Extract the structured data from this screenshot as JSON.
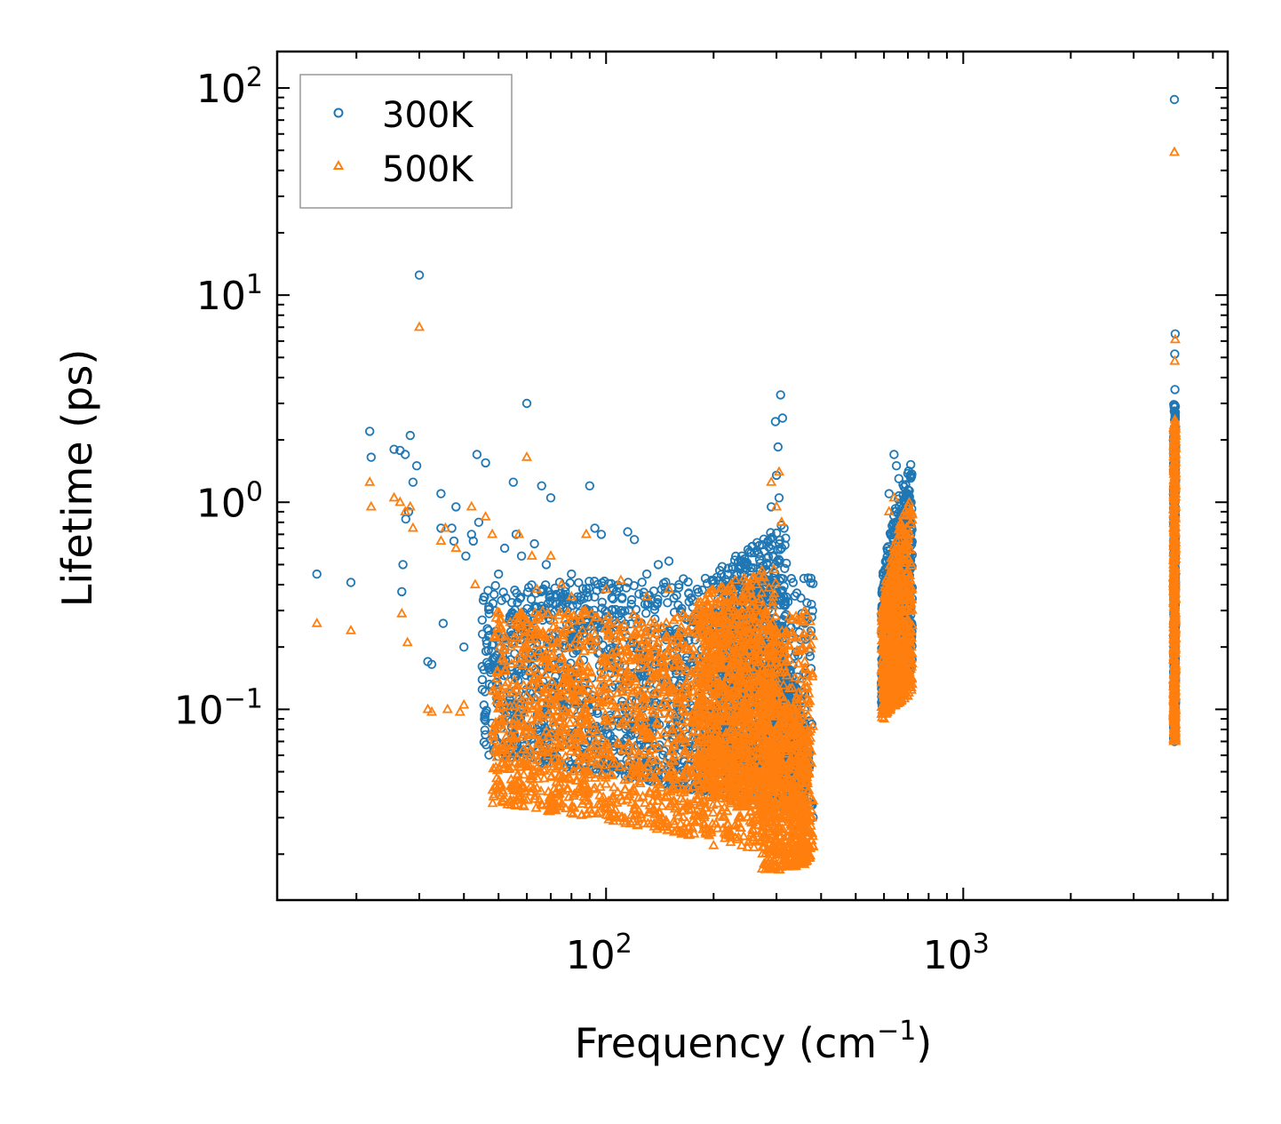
{
  "chart_data": {
    "type": "scatter",
    "title": "",
    "xlabel": "Frequency (cm",
    "xlabel_sup": "−1",
    "xlabel_close": ")",
    "ylabel": "Lifetime (ps)",
    "xscale": "log",
    "yscale": "log",
    "xlim": [
      12,
      5500
    ],
    "ylim": [
      0.012,
      150
    ],
    "x_ticks": [
      {
        "value": 100,
        "base": "10",
        "exp": "2"
      },
      {
        "value": 1000,
        "base": "10",
        "exp": "3"
      }
    ],
    "y_ticks": [
      {
        "value": 0.1,
        "base": "10",
        "exp": "−1"
      },
      {
        "value": 1,
        "base": "10",
        "exp": "0"
      },
      {
        "value": 10,
        "base": "10",
        "exp": "1"
      },
      {
        "value": 100,
        "base": "10",
        "exp": "2"
      }
    ],
    "legend_position": "top-left",
    "series": [
      {
        "name": "300K",
        "marker": "circle",
        "color": "#1f77b4",
        "points": [
          [
            15.5,
            0.45
          ],
          [
            19.3,
            0.41
          ],
          [
            21.8,
            2.2
          ],
          [
            22.0,
            1.65
          ],
          [
            25.5,
            1.8
          ],
          [
            26.5,
            1.78
          ],
          [
            27.4,
            1.7
          ],
          [
            28.3,
            2.1
          ],
          [
            28.8,
            1.25
          ],
          [
            29.5,
            1.5
          ],
          [
            30.0,
            12.5
          ],
          [
            27.0,
            0.5
          ],
          [
            27.5,
            0.83
          ],
          [
            28.0,
            0.9
          ],
          [
            26.8,
            0.37
          ],
          [
            31.7,
            0.17
          ],
          [
            32.5,
            0.165
          ],
          [
            34.5,
            1.1
          ],
          [
            34.5,
            0.75
          ],
          [
            35.0,
            0.26
          ],
          [
            37.0,
            0.75
          ],
          [
            37.5,
            0.65
          ],
          [
            38.0,
            0.95
          ],
          [
            40.0,
            0.2
          ],
          [
            40.5,
            0.55
          ],
          [
            42.0,
            0.7
          ],
          [
            42.5,
            0.65
          ],
          [
            43.5,
            1.7
          ],
          [
            46.0,
            1.55
          ],
          [
            44.0,
            0.8
          ],
          [
            45.0,
            0.27
          ],
          [
            48.0,
            0.13
          ],
          [
            50.0,
            0.45
          ],
          [
            52.0,
            0.6
          ],
          [
            55.0,
            1.25
          ],
          [
            56.0,
            0.7
          ],
          [
            58.0,
            0.55
          ],
          [
            60.0,
            3.0
          ],
          [
            63.0,
            0.63
          ],
          [
            66.0,
            1.2
          ],
          [
            68.0,
            0.5
          ],
          [
            70.0,
            1.05
          ],
          [
            75.0,
            0.35
          ],
          [
            80.0,
            0.45
          ],
          [
            85.0,
            0.35
          ],
          [
            90.0,
            1.2
          ],
          [
            93.0,
            0.75
          ],
          [
            97.0,
            0.7
          ],
          [
            100.0,
            0.28
          ],
          [
            110.0,
            0.3
          ],
          [
            115.0,
            0.72
          ],
          [
            120.0,
            0.66
          ],
          [
            130.0,
            0.45
          ],
          [
            140.0,
            0.5
          ],
          [
            150.0,
            0.52
          ],
          [
            160.0,
            0.4
          ],
          [
            180.0,
            0.38
          ],
          [
            200.0,
            0.42
          ],
          [
            220.0,
            0.48
          ],
          [
            240.0,
            0.55
          ],
          [
            255.0,
            0.57
          ],
          [
            270.0,
            0.48
          ],
          [
            298.0,
            2.45
          ],
          [
            303.0,
            1.85
          ],
          [
            308.0,
            3.3
          ],
          [
            312.0,
            2.55
          ],
          [
            300.0,
            1.35
          ],
          [
            305.0,
            1.05
          ],
          [
            315.0,
            0.75
          ],
          [
            290.0,
            0.95
          ],
          [
            360.0,
            0.26
          ],
          [
            358.0,
            0.15
          ],
          [
            355.0,
            0.12
          ],
          [
            640.0,
            1.7
          ],
          [
            650.0,
            1.5
          ],
          [
            660.0,
            1.3
          ],
          [
            700.0,
            0.9
          ],
          [
            620.0,
            1.1
          ],
          [
            600.0,
            0.35
          ],
          [
            3900.0,
            88.0
          ],
          [
            3920.0,
            6.5
          ],
          [
            3910.0,
            5.2
          ],
          [
            3915.0,
            3.5
          ],
          [
            3905.0,
            2.5
          ]
        ],
        "clusters": [
          {
            "x": [
              45,
              380
            ],
            "y_low": [
              0.06,
              0.03
            ],
            "y_high": [
              0.4,
              0.45
            ],
            "count": 1600
          },
          {
            "x": [
              200,
              320
            ],
            "y_low": [
              0.05,
              0.05
            ],
            "y_high": [
              0.45,
              0.8
            ],
            "count": 700
          },
          {
            "x": [
              300,
              360
            ],
            "y_low": [
              0.05,
              0.03
            ],
            "y_high": [
              0.2,
              0.1
            ],
            "count": 400
          },
          {
            "x": [
              590,
              720
            ],
            "y_low": [
              0.1,
              0.15
            ],
            "y_high": [
              0.4,
              1.6
            ],
            "count": 700
          },
          {
            "x": [
              3880,
              3930
            ],
            "y_low": [
              0.07,
              0.07
            ],
            "y_high": [
              3.0,
              3.0
            ],
            "count": 450
          }
        ]
      },
      {
        "name": "500K",
        "marker": "triangle",
        "color": "#ff7f0e",
        "points": [
          [
            15.5,
            0.26
          ],
          [
            19.3,
            0.24
          ],
          [
            21.8,
            1.25
          ],
          [
            22.0,
            0.95
          ],
          [
            25.5,
            1.05
          ],
          [
            26.5,
            1.0
          ],
          [
            27.4,
            0.9
          ],
          [
            28.3,
            0.95
          ],
          [
            28.8,
            0.75
          ],
          [
            30.0,
            7.0
          ],
          [
            26.8,
            0.29
          ],
          [
            27.8,
            0.21
          ],
          [
            31.7,
            0.1
          ],
          [
            32.5,
            0.097
          ],
          [
            34.5,
            0.65
          ],
          [
            35.5,
            0.75
          ],
          [
            36.0,
            0.1
          ],
          [
            38.0,
            0.6
          ],
          [
            39.0,
            0.097
          ],
          [
            40.0,
            0.105
          ],
          [
            42.0,
            0.95
          ],
          [
            43.0,
            0.4
          ],
          [
            46.0,
            0.85
          ],
          [
            48.0,
            0.7
          ],
          [
            49.0,
            0.065
          ],
          [
            52.0,
            0.065
          ],
          [
            57.0,
            0.7
          ],
          [
            60.0,
            1.65
          ],
          [
            62.0,
            0.55
          ],
          [
            64.0,
            0.38
          ],
          [
            70.0,
            0.55
          ],
          [
            75.0,
            0.4
          ],
          [
            80.0,
            0.35
          ],
          [
            88.0,
            0.7
          ],
          [
            100.0,
            0.38
          ],
          [
            110.0,
            0.42
          ],
          [
            130.0,
            0.35
          ],
          [
            150.0,
            0.38
          ],
          [
            200.0,
            0.022
          ],
          [
            230.0,
            0.024
          ],
          [
            290.0,
            1.25
          ],
          [
            300.0,
            0.95
          ],
          [
            305.0,
            1.4
          ],
          [
            310.0,
            0.8
          ],
          [
            360.0,
            0.17
          ],
          [
            640.0,
            1.05
          ],
          [
            620.0,
            0.9
          ],
          [
            600.0,
            0.09
          ],
          [
            3900.0,
            49.0
          ],
          [
            3920.0,
            6.1
          ],
          [
            3910.0,
            4.8
          ],
          [
            3915.0,
            2.5
          ]
        ],
        "clusters": [
          {
            "x": [
              48,
              380
            ],
            "y_low": [
              0.035,
              0.018
            ],
            "y_high": [
              0.3,
              0.3
            ],
            "count": 2000
          },
          {
            "x": [
              180,
              300
            ],
            "y_low": [
              0.04,
              0.03
            ],
            "y_high": [
              0.35,
              0.5
            ],
            "count": 800
          },
          {
            "x": [
              270,
              370
            ],
            "y_low": [
              0.016,
              0.018
            ],
            "y_high": [
              0.15,
              0.08
            ],
            "count": 600
          },
          {
            "x": [
              590,
              720
            ],
            "y_low": [
              0.09,
              0.12
            ],
            "y_high": [
              0.3,
              1.1
            ],
            "count": 700
          },
          {
            "x": [
              3880,
              3930
            ],
            "y_low": [
              0.07,
              0.07
            ],
            "y_high": [
              2.5,
              2.5
            ],
            "count": 500
          }
        ]
      }
    ]
  }
}
